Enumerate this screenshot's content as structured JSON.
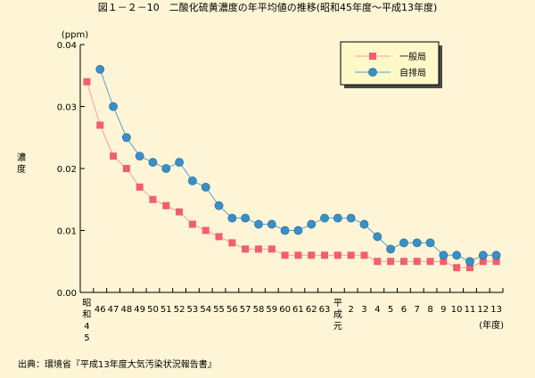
{
  "chart_data": {
    "type": "line",
    "title": "図１－２－10　二酸化硫黄濃度の年平均値の推移(昭和45年度～平成13年度)",
    "unit": "(ppm)",
    "ylabel": "濃度",
    "xlabel": "(年度)",
    "source": "出典：環境省『平成13年度大気汚染状況報告書』",
    "ylim": [
      0,
      0.04
    ],
    "yticks": [
      "0.00",
      "0.01",
      "0.02",
      "0.03",
      "0.04"
    ],
    "categories": [
      "昭和45",
      "46",
      "47",
      "48",
      "49",
      "50",
      "51",
      "52",
      "53",
      "54",
      "55",
      "56",
      "57",
      "58",
      "59",
      "60",
      "61",
      "62",
      "63",
      "平成元",
      "2",
      "3",
      "4",
      "5",
      "6",
      "7",
      "8",
      "9",
      "10",
      "11",
      "12",
      "13"
    ],
    "xtick_labels": [
      "昭和\n45",
      "46",
      "47",
      "48",
      "49",
      "50",
      "51",
      "52",
      "53",
      "54",
      "55",
      "56",
      "57",
      "58",
      "59",
      "60",
      "61",
      "62",
      "63",
      "平成\n元",
      "2",
      "3",
      "4",
      "5",
      "6",
      "7",
      "8",
      "9",
      "10",
      "11",
      "12",
      "13"
    ],
    "legend_position": "top-right",
    "series": [
      {
        "name": "一般局",
        "marker": "square",
        "color": "#f0606a",
        "line_color": "#f0a0a8",
        "values": [
          0.034,
          0.027,
          0.022,
          0.02,
          0.017,
          0.015,
          0.014,
          0.013,
          0.011,
          0.01,
          0.009,
          0.008,
          0.007,
          0.007,
          0.007,
          0.006,
          0.006,
          0.006,
          0.006,
          0.006,
          0.006,
          0.006,
          0.005,
          0.005,
          0.005,
          0.005,
          0.005,
          0.005,
          0.004,
          0.004,
          0.005,
          0.005
        ]
      },
      {
        "name": "自排局",
        "marker": "circle",
        "color": "#3a8fc6",
        "line_color": "#5aa0d0",
        "values": [
          null,
          0.036,
          0.03,
          0.025,
          0.022,
          0.021,
          0.02,
          0.021,
          0.018,
          0.017,
          0.014,
          0.012,
          0.012,
          0.011,
          0.011,
          0.01,
          0.01,
          0.011,
          0.012,
          0.012,
          0.012,
          0.011,
          0.009,
          0.007,
          0.008,
          0.008,
          0.008,
          0.006,
          0.006,
          0.005,
          0.006,
          0.006
        ]
      }
    ]
  }
}
